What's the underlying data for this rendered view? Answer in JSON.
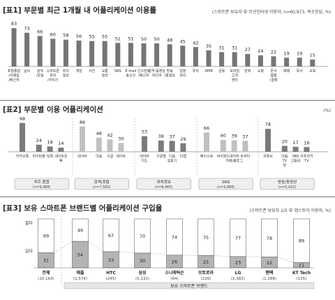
{
  "chart_data": [
    {
      "type": "bar",
      "title": "[표1] 부문별 최근 1개월 내 어플리케이션 이용률",
      "note": "(스마트폰 보유자 中 무선인터넷 이용자, n=60,973, 복수응답, %)",
      "categories": [
        "포털종합 /이메일 /메신저",
        "날씨",
        "검색 /포털",
        "스마트폰 관리 /꾸미기",
        "위치 정보",
        "게임",
        "사진",
        "교통 정보",
        "SNS",
        "E-mail 송수신",
        "인스턴트 /메신저",
        "원격·동영상 미디어",
        "방송 /동영상",
        "일정 관리",
        "뮤직",
        "DMB",
        "금융",
        "모바일 고객 센터",
        "만화",
        "쇼핑",
        "폰서 열람 /결제",
        "예매",
        "독서",
        "교육"
      ],
      "values": [
        83,
        73,
        66,
        60,
        58,
        56,
        55,
        55,
        51,
        51,
        50,
        50,
        48,
        45,
        42,
        35,
        31,
        31,
        27,
        24,
        22,
        19,
        19,
        15
      ]
    },
    {
      "type": "bar",
      "title": "[표2] 부문별 이용 어플리케이션",
      "unit": "(%)",
      "groups": [
        {
          "label": "푸르 종합",
          "n": "(n=9,488)",
          "bars": [
            {
              "name": "카카오톡",
              "value": 98,
              "color": "#7b7b7b"
            },
            {
              "name": "마이피플",
              "value": 24,
              "color": "#7b7b7b"
            },
            {
              "name": "틱톡",
              "value": 18,
              "color": "#7b7b7b"
            },
            {
              "name": "네이트온 톡",
              "value": 14,
              "color": "#7b7b7b"
            }
          ]
        },
        {
          "label": "검색/포탈",
          "n": "(n=7,583)",
          "bars": [
            {
              "name": "네이버",
              "value": 86,
              "color": "#c0c0c0"
            },
            {
              "name": "다음",
              "value": 48,
              "color": "#c0c0c0"
            },
            {
              "name": "구글",
              "value": 42,
              "color": "#c0c0c0"
            },
            {
              "name": "네이트",
              "value": 30,
              "color": "#c0c0c0"
            }
          ]
        },
        {
          "label": "위치정보",
          "n": "(n=8,460)",
          "bars": [
            {
              "name": "네이버 지도",
              "value": 53,
              "color": "#7b7b7b"
            },
            {
              "name": "구글맵",
              "value": 38,
              "color": "#7b7b7b"
            },
            {
              "name": "다음 길찾기",
              "value": 37,
              "color": "#7b7b7b"
            },
            {
              "name": "티맵",
              "value": 29,
              "color": "#7b7b7b"
            }
          ]
        },
        {
          "label": "SNS",
          "n": "(n=5,886)",
          "bars": [
            {
              "name": "페이스북",
              "value": 66,
              "color": "#c0c0c0"
            },
            {
              "name": "싸이월드",
              "value": 40,
              "color": "#c0c0c0"
            },
            {
              "name": "네이버 카페/블로그",
              "value": 39,
              "color": "#c0c0c0"
            },
            {
              "name": "트위터",
              "value": 37,
              "color": "#c0c0c0"
            }
          ]
        },
        {
          "label": "방송/동영상",
          "n": "(n=5,422)",
          "bars": [
            {
              "name": "유튜브",
              "value": 78,
              "color": "#7b7b7b"
            },
            {
              "name": "다음 TV 팟",
              "value": 20,
              "color": "#7b7b7b"
            },
            {
              "name": "SBS 고릴라",
              "value": 17,
              "color": "#7b7b7b"
            },
            {
              "name": "아프리카 TV",
              "value": 16,
              "color": "#7b7b7b"
            }
          ]
        }
      ]
    },
    {
      "type": "bar",
      "title": "[표3] 보유 스마트폰 브랜드별 어플리케이션 구입율",
      "note": "(스마트폰 보유자 1/5 中 앱스토어 이용자, %)",
      "row_labels": [
        "없다",
        "있다"
      ],
      "categories": [
        "전체",
        "애플",
        "HTC",
        "삼성",
        "소니에릭슨",
        "모토로라",
        "LG",
        "팬택",
        "KT Tech"
      ],
      "sample_sizes": [
        "(10,163)",
        "(1,574)",
        "(245)",
        "(5,132)",
        "(84)",
        "(226)",
        "(1,382)",
        "(1,288)",
        "(135)"
      ],
      "series": [
        {
          "name": "있다",
          "values": [
            31,
            54,
            33,
            30,
            26,
            25,
            23,
            22,
            11
          ]
        },
        {
          "name": "없다",
          "values": [
            69,
            46,
            67,
            70,
            74,
            75,
            77,
            78,
            89
          ]
        }
      ],
      "bracket_label": "보유 스마트폰 브랜드"
    }
  ]
}
